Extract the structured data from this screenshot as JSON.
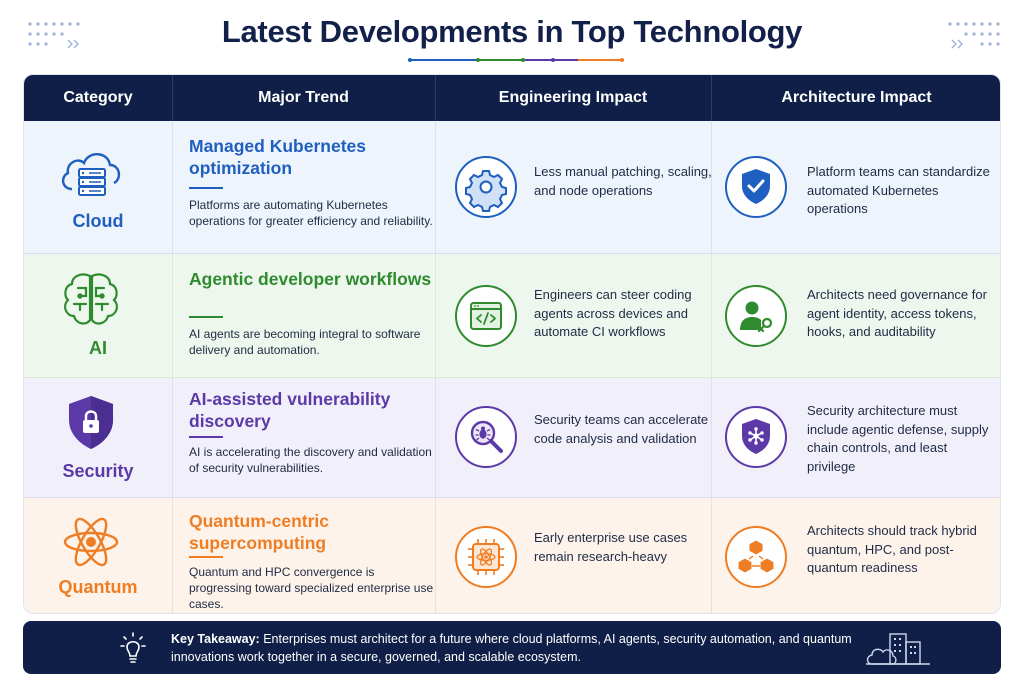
{
  "title": "Latest Developments in Top Technology",
  "colors": {
    "navy": "#0f1f47",
    "cloud": "#1f5fbf",
    "ai": "#2e8b2e",
    "security": "#5b3aa8",
    "quantum": "#ee7d24"
  },
  "headers": [
    "Category",
    "Major Trend",
    "Engineering Impact",
    "Architecture Impact"
  ],
  "rows": [
    {
      "category": "Cloud",
      "category_icon": "cloud-server-icon",
      "trend_title": "Managed Kubernetes optimization",
      "trend_desc": "Platforms are automating Kubernetes operations for greater efficiency and reliability.",
      "eng_icon": "gear-icon",
      "eng_text": "Less manual patching, scaling, and node operations",
      "arch_icon": "shield-check-icon",
      "arch_text": "Platform teams can standardize automated Kubernetes operations"
    },
    {
      "category": "AI",
      "category_icon": "brain-icon",
      "trend_title": "Agentic developer workflows",
      "trend_desc": "AI agents are becoming integral to software delivery and automation.",
      "eng_icon": "code-window-icon",
      "eng_text": "Engineers can steer coding agents across devices and automate CI workflows",
      "arch_icon": "user-key-icon",
      "arch_text": "Architects need governance for agent identity, access tokens, hooks, and auditability"
    },
    {
      "category": "Security",
      "category_icon": "shield-lock-icon",
      "trend_title": "AI-assisted vulnerability discovery",
      "trend_desc": "AI is accelerating the discovery and validation of security vulnerabilities.",
      "eng_icon": "bug-search-icon",
      "eng_text": "Security teams can accelerate code analysis and validation",
      "arch_icon": "shield-network-icon",
      "arch_text": "Security architecture must include agentic defense, supply chain controls, and least privilege"
    },
    {
      "category": "Quantum",
      "category_icon": "atom-icon",
      "trend_title": "Quantum-centric supercomputing",
      "trend_desc": "Quantum and HPC convergence is progressing toward specialized enterprise use cases.",
      "eng_icon": "atom-chip-icon",
      "eng_text": "Early enterprise use cases remain research-heavy",
      "arch_icon": "cubes-icon",
      "arch_text": "Architects should track hybrid quantum, HPC, and post-quantum readiness"
    }
  ],
  "footer": {
    "label": "Key Takeaway:",
    "text": " Enterprises must architect for a future where cloud platforms, AI agents, security automation, and quantum innovations work together in a secure, governed, and scalable ecosystem."
  }
}
